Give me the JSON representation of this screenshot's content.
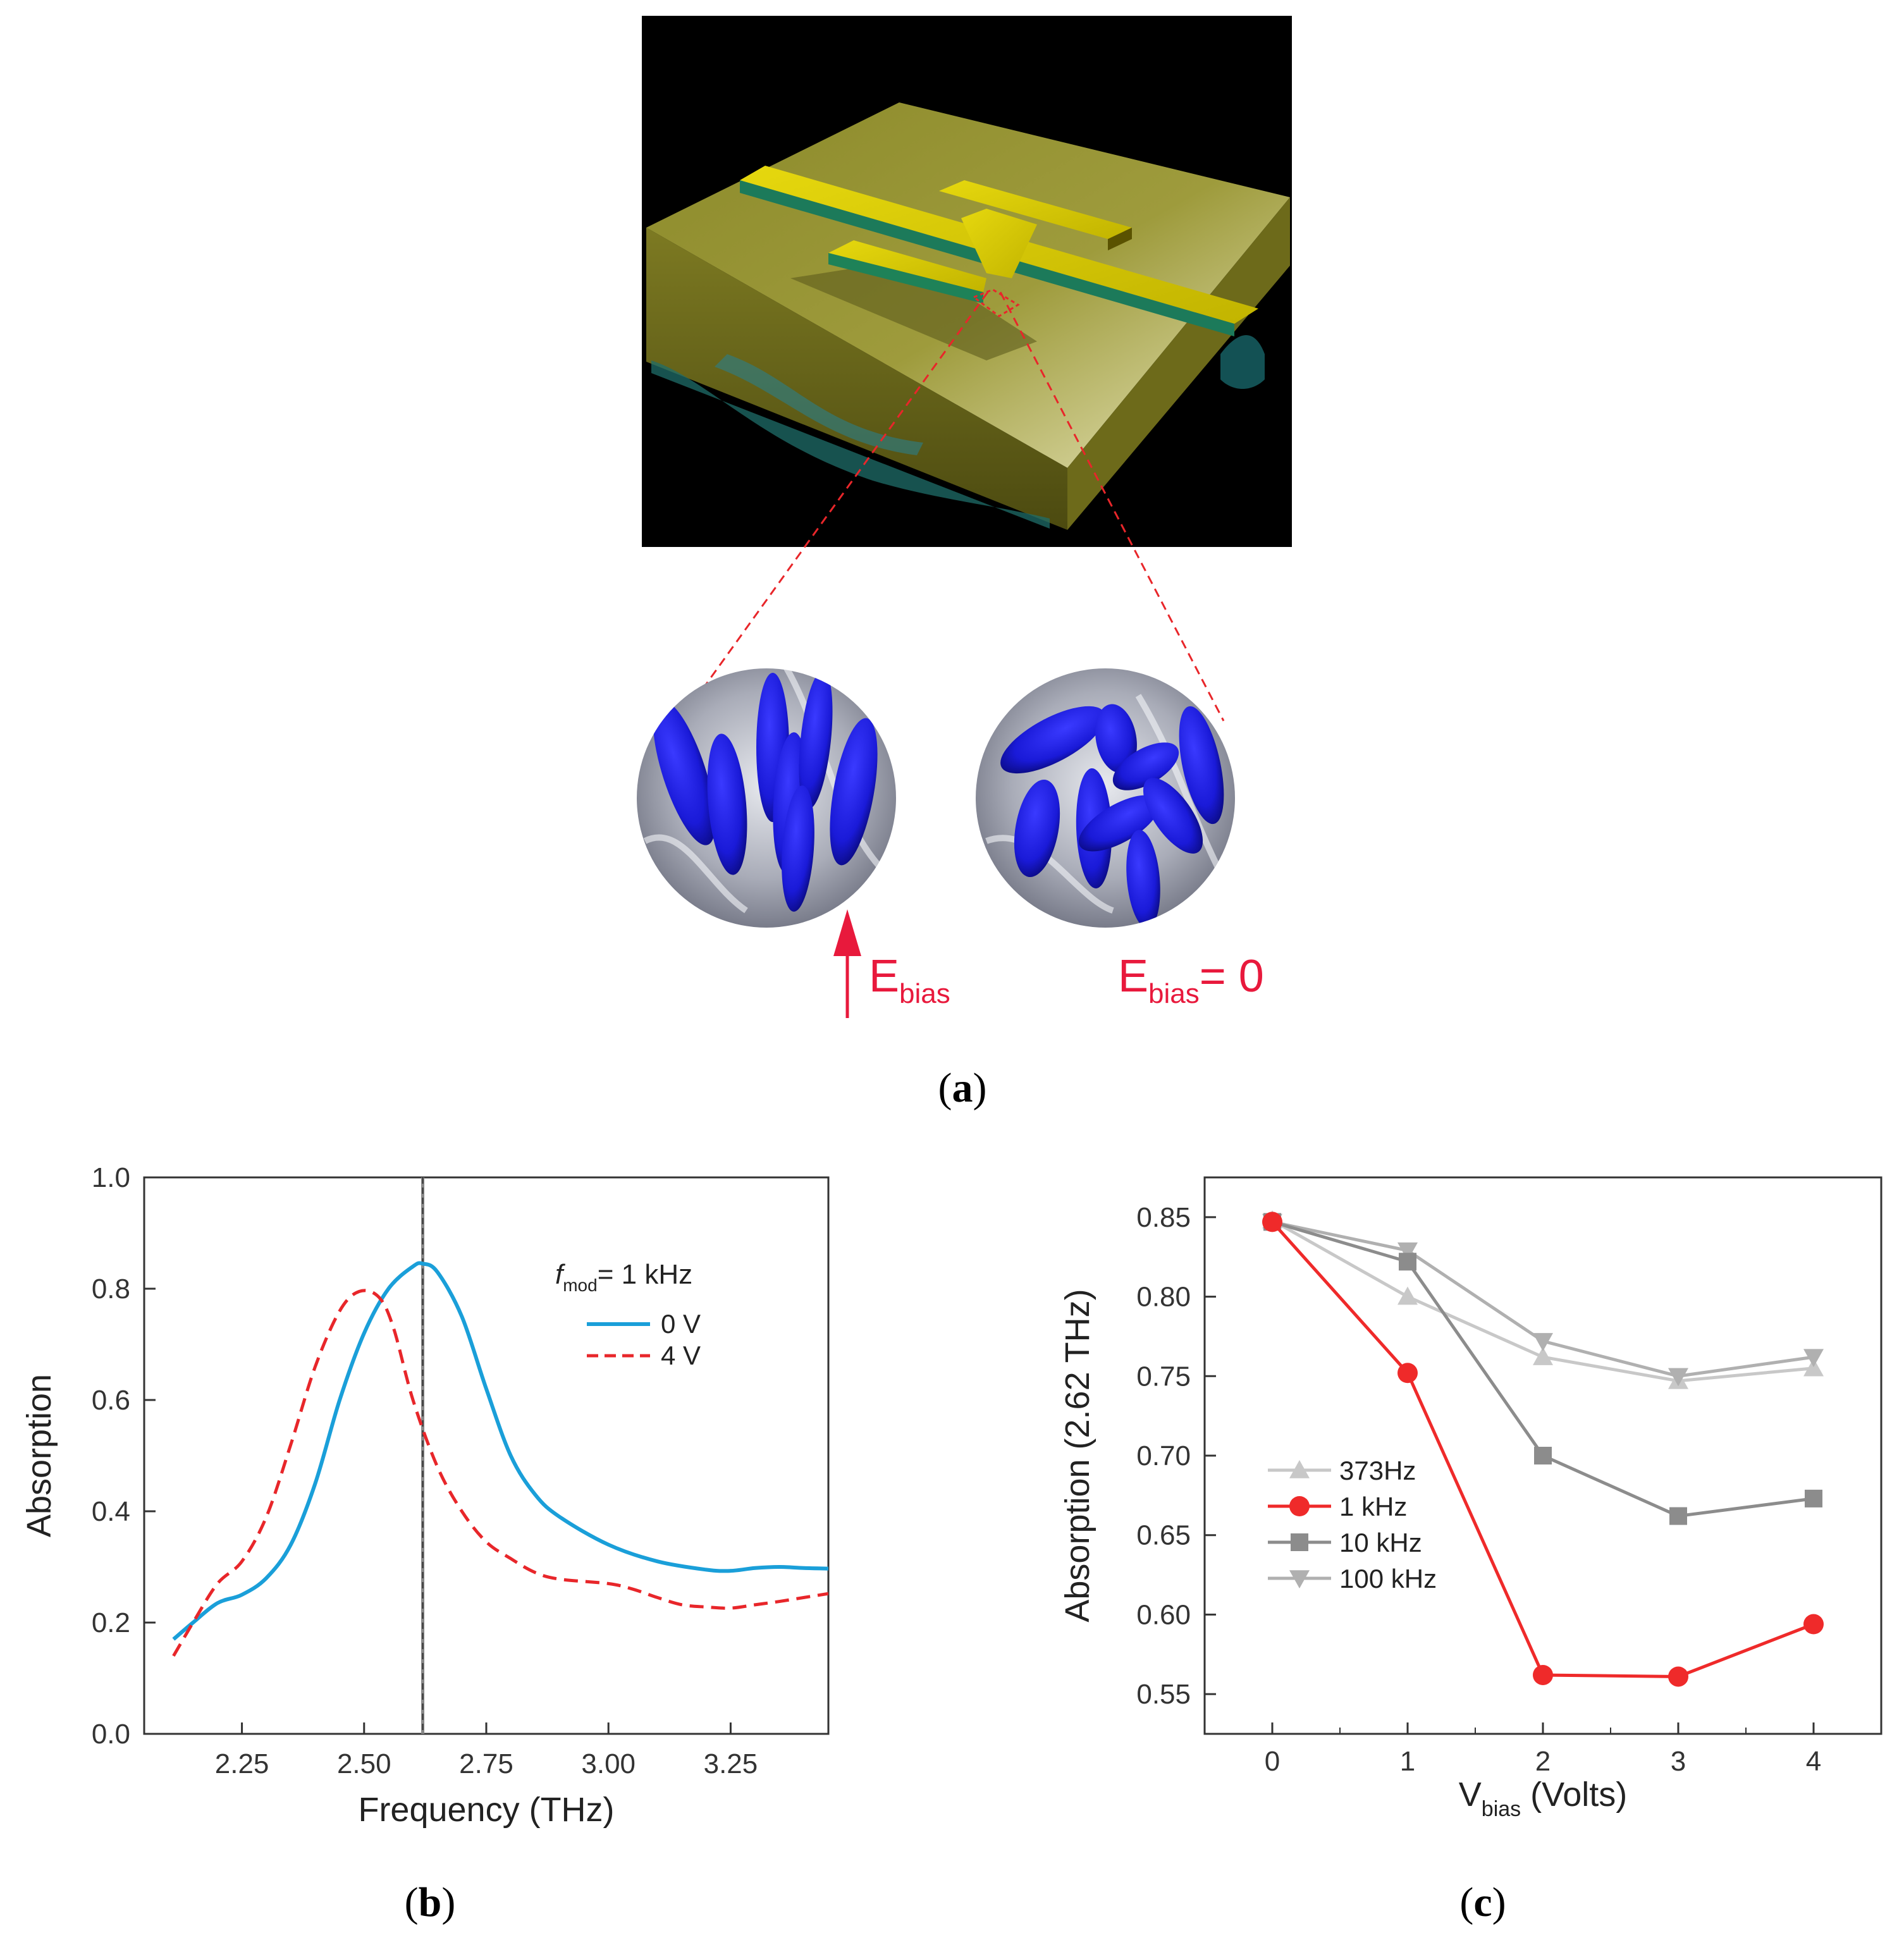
{
  "panels": {
    "a": {
      "caption_open": "(",
      "caption_letter": "a",
      "caption_close": ")"
    },
    "b": {
      "caption_open": "(",
      "caption_letter": "b",
      "caption_close": ")"
    },
    "c": {
      "caption_open": "(",
      "caption_letter": "c",
      "caption_close": ")"
    }
  },
  "illustration": {
    "label_left_main": "E",
    "label_left_sub": "bias",
    "label_right_main": "E",
    "label_right_sub": "bias",
    "label_right_tail": "= 0",
    "colors": {
      "field_label": "#e8193c",
      "ellipsoid": "#1a1ad8",
      "patch": "#c9b80a",
      "background": "#000000"
    }
  },
  "chart_data": [
    {
      "type": "line",
      "panel": "b",
      "xlabel": "Frequency (THz)",
      "ylabel": "Absorption",
      "xlim": [
        2.05,
        3.45
      ],
      "ylim": [
        0.0,
        1.0
      ],
      "xticks": [
        2.25,
        2.5,
        2.75,
        3.0,
        3.25
      ],
      "xtick_labels": [
        "2.25",
        "2.50",
        "2.75",
        "3.00",
        "3.25"
      ],
      "yticks": [
        0.0,
        0.2,
        0.4,
        0.6,
        0.8,
        1.0
      ],
      "ytick_labels": [
        "0.0",
        "0.2",
        "0.4",
        "0.6",
        "0.8",
        "1.0"
      ],
      "vline": 2.62,
      "legend_title_main": "f",
      "legend_title_sub": "mod",
      "legend_title_tail": "= 1 kHz",
      "series": [
        {
          "name": "0 V",
          "color": "#1a9fd9",
          "style": "solid",
          "x": [
            2.11,
            2.15,
            2.2,
            2.25,
            2.3,
            2.35,
            2.4,
            2.45,
            2.5,
            2.55,
            2.6,
            2.62,
            2.65,
            2.7,
            2.75,
            2.8,
            2.85,
            2.9,
            3.0,
            3.1,
            3.2,
            3.25,
            3.3,
            3.35,
            3.4,
            3.45
          ],
          "y": [
            0.17,
            0.2,
            0.235,
            0.25,
            0.28,
            0.34,
            0.45,
            0.6,
            0.72,
            0.8,
            0.84,
            0.845,
            0.83,
            0.75,
            0.62,
            0.5,
            0.43,
            0.39,
            0.34,
            0.31,
            0.295,
            0.293,
            0.298,
            0.3,
            0.298,
            0.297
          ]
        },
        {
          "name": "4 V",
          "color": "#e8262a",
          "style": "dashed",
          "x": [
            2.11,
            2.15,
            2.2,
            2.25,
            2.3,
            2.35,
            2.4,
            2.45,
            2.49,
            2.53,
            2.56,
            2.6,
            2.65,
            2.7,
            2.75,
            2.8,
            2.85,
            2.9,
            3.0,
            3.05,
            3.1,
            3.15,
            3.2,
            3.25,
            3.3,
            3.35,
            3.4,
            3.45
          ],
          "y": [
            0.14,
            0.2,
            0.27,
            0.31,
            0.39,
            0.52,
            0.66,
            0.76,
            0.795,
            0.785,
            0.73,
            0.6,
            0.48,
            0.4,
            0.345,
            0.315,
            0.29,
            0.278,
            0.27,
            0.26,
            0.245,
            0.232,
            0.228,
            0.226,
            0.232,
            0.238,
            0.245,
            0.252
          ]
        }
      ]
    },
    {
      "type": "line",
      "panel": "c",
      "xlabel_main": "V",
      "xlabel_sub": "bias",
      "xlabel_tail": " (Volts)",
      "ylabel": "Absorption (2.62 THz)",
      "xlim": [
        -0.5,
        4.5
      ],
      "ylim": [
        0.525,
        0.875
      ],
      "xticks": [
        0,
        1,
        2,
        3,
        4
      ],
      "xtick_labels": [
        "0",
        "1",
        "2",
        "3",
        "4"
      ],
      "yticks": [
        0.55,
        0.6,
        0.65,
        0.7,
        0.75,
        0.8,
        0.85
      ],
      "ytick_labels": [
        "0.55",
        "0.60",
        "0.65",
        "0.70",
        "0.75",
        "0.80",
        "0.85"
      ],
      "series": [
        {
          "name": "373Hz",
          "color": "#c8c8c8",
          "marker": "triangle-up",
          "x": [
            0,
            1,
            2,
            3,
            4
          ],
          "y": [
            0.848,
            0.8,
            0.762,
            0.747,
            0.755
          ]
        },
        {
          "name": "1 kHz",
          "color": "#ef2a2a",
          "marker": "circle",
          "x": [
            0,
            1,
            2,
            3,
            4
          ],
          "y": [
            0.847,
            0.752,
            0.562,
            0.561,
            0.594
          ]
        },
        {
          "name": "10 kHz",
          "color": "#8c8c8c",
          "marker": "square",
          "x": [
            0,
            1,
            2,
            3,
            4
          ],
          "y": [
            0.847,
            0.822,
            0.7,
            0.662,
            0.673
          ]
        },
        {
          "name": "100 kHz",
          "color": "#b0b0b0",
          "marker": "triangle-down",
          "x": [
            0,
            1,
            2,
            3,
            4
          ],
          "y": [
            0.847,
            0.829,
            0.772,
            0.75,
            0.762
          ]
        }
      ]
    }
  ]
}
